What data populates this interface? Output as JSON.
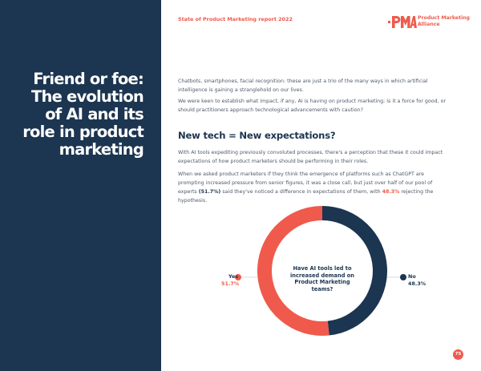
{
  "header": {
    "report_title": "State of Product Marketing report 2022",
    "logo_text": "Product Marketing Alliance"
  },
  "heading": {
    "line1": "Friend or foe:",
    "line2": "The evolution",
    "line3": "of AI and its",
    "line4": "role in product",
    "line5": "marketing"
  },
  "body": {
    "p1": "Chatbots, smartphones, facial recognition: these are just a trio of the many ways in which artificial intelligence is gaining a stranglehold on our lives.",
    "p2": "We were keen to establish what impact, if any, AI is having on product marketing; is it a force for good, or should practitioners approach technological advancements with caution?",
    "subheading": "New tech = New expectations?",
    "p3": "With AI tools expediting previously convoluted processes, there's a perception that these it could impact expectations of how product marketers should be performing in their roles.",
    "p4_a": "When we asked product marketers if they think the emergence of platforms such as ChatGPT are prompting increased pressure from senior figures, it was a close call, but just over half of our pool of experts ",
    "p4_b": "(51.7%)",
    "p4_c": " said they've noticed a difference in expectations of them, with ",
    "p4_d": "48.3%",
    "p4_e": " rejecting the hypothesis."
  },
  "chart_data": {
    "type": "pie",
    "title": "Have AI tools led to increased demand on Product Marketing teams?",
    "categories": [
      "Yes",
      "No"
    ],
    "values": [
      51.7,
      48.3
    ],
    "value_labels": [
      "51.7%",
      "48.3%"
    ],
    "colors": [
      "#ef5a4c",
      "#1c3550"
    ]
  },
  "footer": {
    "page_number": "75"
  }
}
